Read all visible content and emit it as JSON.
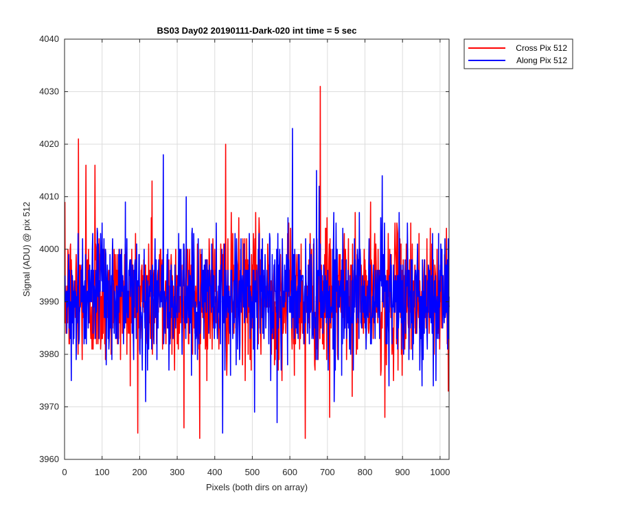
{
  "chart_data": {
    "type": "line",
    "title": "BS03 Day02 20190111-Dark-020 int time = 5 sec",
    "xlabel": "Pixels (both dirs on array)",
    "ylabel": "Signal (ADU) @ pix 512",
    "xlim": [
      0,
      1024
    ],
    "ylim": [
      3960,
      4040
    ],
    "xticks": [
      0,
      100,
      200,
      300,
      400,
      500,
      600,
      700,
      800,
      900,
      1000
    ],
    "yticks": [
      3960,
      3970,
      3980,
      3990,
      4000,
      4010,
      4020,
      4030,
      4040
    ],
    "grid": true,
    "legend_position": "outside-top-right",
    "series": [
      {
        "name": "Cross Pix 512",
        "color": "#ff0000",
        "mean": 3991,
        "sd": 6.5,
        "noise_seed": 12345,
        "n_points": 1024,
        "peaks": [
          [
            36,
            4021
          ],
          [
            56,
            4016
          ],
          [
            80,
            4016
          ],
          [
            232,
            4013
          ],
          [
            317,
            3966
          ],
          [
            428,
            4020
          ],
          [
            640,
            3964
          ],
          [
            680,
            4031
          ],
          [
            705,
            3968
          ],
          [
            852,
            3968
          ]
        ]
      },
      {
        "name": "Along Pix 512",
        "color": "#0000ff",
        "mean": 3991,
        "sd": 6.0,
        "noise_seed": 67890,
        "n_points": 1024,
        "peaks": [
          [
            17,
            3975
          ],
          [
            215,
            3971
          ],
          [
            262,
            4018
          ],
          [
            420,
            3965
          ],
          [
            505,
            3969
          ],
          [
            565,
            3967
          ],
          [
            606,
            4023
          ],
          [
            670,
            4015
          ],
          [
            845,
            4014
          ]
        ]
      }
    ]
  }
}
